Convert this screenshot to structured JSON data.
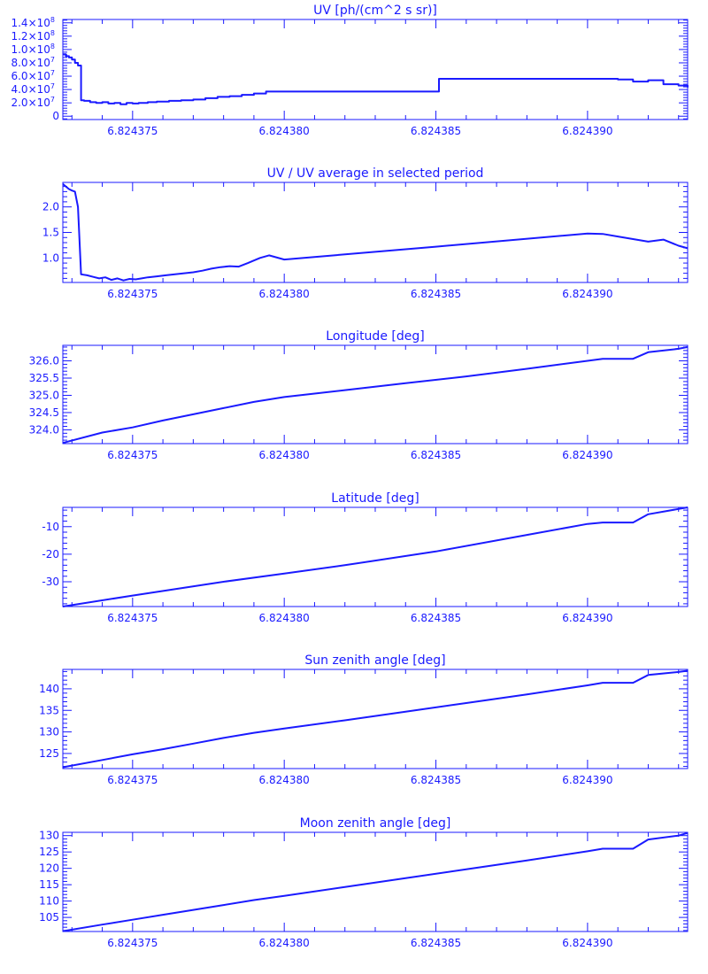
{
  "color": "#1a1aff",
  "x_ticks": [
    "6.824375",
    "6.824380",
    "6.824385",
    "6.824390"
  ],
  "x_tick_values": [
    6.824375,
    6.82438,
    6.824385,
    6.82439
  ],
  "xlim": [
    6.8243727,
    6.8243933
  ],
  "chart_data": [
    {
      "type": "line",
      "title": "UV [ph/(cm^2 s sr)]",
      "ylim": [
        -5000000,
        145000000
      ],
      "y_ticks": [
        0,
        20000000,
        40000000,
        60000000,
        80000000,
        100000000,
        120000000,
        140000000
      ],
      "y_tick_labels": [
        {
          "text": "0"
        },
        {
          "m": "2.0×10",
          "e": "7"
        },
        {
          "m": "4.0×10",
          "e": "7"
        },
        {
          "m": "6.0×10",
          "e": "7"
        },
        {
          "m": "8.0×10",
          "e": "7"
        },
        {
          "m": "1.0×10",
          "e": "8"
        },
        {
          "m": "1.2×10",
          "e": "8"
        },
        {
          "m": "1.4×10",
          "e": "8"
        }
      ],
      "x": [
        6.8243727,
        6.8243728,
        6.8243729,
        6.824373,
        6.8243731,
        6.8243732,
        6.8243733,
        6.8243734,
        6.8243736,
        6.8243738,
        6.824374,
        6.8243742,
        6.8243744,
        6.8243746,
        6.8243748,
        6.824375,
        6.8243752,
        6.8243755,
        6.8243758,
        6.8243762,
        6.8243766,
        6.824377,
        6.8243774,
        6.8243778,
        6.8243782,
        6.8243786,
        6.824379,
        6.8243794,
        6.82438,
        6.824385,
        6.8243851,
        6.824389,
        6.82439,
        6.824391,
        6.8243915,
        6.824392,
        6.8243925,
        6.824393,
        6.8243933
      ],
      "y": [
        93000000,
        90000000,
        88000000,
        85000000,
        80000000,
        76000000,
        24000000,
        23000000,
        21000000,
        20000000,
        21000000,
        19000000,
        20000000,
        18000000,
        20000000,
        19000000,
        20000000,
        21000000,
        22000000,
        23000000,
        24000000,
        25000000,
        27000000,
        29000000,
        30000000,
        32000000,
        34000000,
        37000000,
        37000000,
        37000000,
        56000000,
        56000000,
        56000000,
        55000000,
        52000000,
        54000000,
        48000000,
        46000000,
        43000000
      ]
    },
    {
      "type": "line",
      "title": "UV / UV average in selected period",
      "ylim": [
        0.52,
        2.48
      ],
      "y_ticks": [
        1.0,
        1.5,
        2.0
      ],
      "y_tick_labels": [
        {
          "text": "1.0"
        },
        {
          "text": "1.5"
        },
        {
          "text": "2.0"
        }
      ],
      "x": [
        6.8243727,
        6.8243728,
        6.8243729,
        6.824373,
        6.8243731,
        6.8243732,
        6.8243733,
        6.8243735,
        6.8243737,
        6.8243739,
        6.8243741,
        6.8243743,
        6.8243745,
        6.8243747,
        6.8243749,
        6.8243751,
        6.8243753,
        6.8243755,
        6.8243758,
        6.8243761,
        6.8243764,
        6.8243767,
        6.824377,
        6.8243773,
        6.8243776,
        6.8243779,
        6.8243782,
        6.8243785,
        6.8243788,
        6.824379,
        6.8243792,
        6.8243795,
        6.82438,
        6.824385,
        6.82439,
        6.8243905,
        6.824391,
        6.8243915,
        6.824392,
        6.8243925,
        6.824393,
        6.8243933
      ],
      "y": [
        2.45,
        2.4,
        2.35,
        2.32,
        2.3,
        2.0,
        0.68,
        0.66,
        0.63,
        0.6,
        0.62,
        0.57,
        0.6,
        0.56,
        0.59,
        0.58,
        0.6,
        0.62,
        0.64,
        0.66,
        0.68,
        0.7,
        0.72,
        0.75,
        0.79,
        0.82,
        0.84,
        0.83,
        0.9,
        0.95,
        1.0,
        1.05,
        0.97,
        1.22,
        1.48,
        1.47,
        1.42,
        1.37,
        1.32,
        1.36,
        1.24,
        1.19
      ]
    },
    {
      "type": "line",
      "title": "Longitude [deg]",
      "ylim": [
        323.6,
        326.45
      ],
      "y_ticks": [
        324.0,
        324.5,
        325.0,
        325.5,
        326.0
      ],
      "y_tick_labels": [
        {
          "text": "324.0"
        },
        {
          "text": "324.5"
        },
        {
          "text": "325.0"
        },
        {
          "text": "325.5"
        },
        {
          "text": "326.0"
        }
      ],
      "x": [
        6.8243727,
        6.824374,
        6.824375,
        6.824376,
        6.824377,
        6.824378,
        6.824379,
        6.82438,
        6.824381,
        6.824382,
        6.824384,
        6.824386,
        6.824388,
        6.82439,
        6.8243905,
        6.8243915,
        6.824392,
        6.824393,
        6.8243933
      ],
      "y": [
        323.62,
        323.92,
        324.07,
        324.27,
        324.45,
        324.63,
        324.81,
        324.95,
        325.05,
        325.15,
        325.35,
        325.55,
        325.77,
        326.0,
        326.06,
        326.06,
        326.25,
        326.35,
        326.4
      ]
    },
    {
      "type": "line",
      "title": "Latitude [deg]",
      "ylim": [
        -39,
        -3
      ],
      "y_ticks": [
        -30,
        -20,
        -10
      ],
      "y_tick_labels": [
        {
          "text": "-30"
        },
        {
          "text": "-20"
        },
        {
          "text": "-10"
        }
      ],
      "x": [
        6.8243727,
        6.824375,
        6.824378,
        6.82438,
        6.824382,
        6.824385,
        6.824388,
        6.82439,
        6.8243905,
        6.8243915,
        6.824392,
        6.8243933
      ],
      "y": [
        -39.0,
        -35.0,
        -30.0,
        -27.0,
        -24.0,
        -19.0,
        -13.0,
        -9.0,
        -8.5,
        -8.5,
        -5.5,
        -3.0
      ]
    },
    {
      "type": "line",
      "title": "Sun zenith angle [deg]",
      "ylim": [
        121.5,
        144.5
      ],
      "y_ticks": [
        125,
        130,
        135,
        140
      ],
      "y_tick_labels": [
        {
          "text": "125"
        },
        {
          "text": "130"
        },
        {
          "text": "135"
        },
        {
          "text": "140"
        }
      ],
      "x": [
        6.8243727,
        6.824374,
        6.824375,
        6.824376,
        6.824377,
        6.824378,
        6.824379,
        6.82438,
        6.824382,
        6.824384,
        6.824386,
        6.824388,
        6.82439,
        6.8243905,
        6.8243915,
        6.824392,
        6.824393,
        6.8243933
      ],
      "y": [
        121.8,
        123.5,
        124.8,
        126.0,
        127.3,
        128.6,
        129.8,
        130.8,
        132.7,
        134.7,
        136.7,
        138.7,
        140.8,
        141.4,
        141.4,
        143.2,
        143.9,
        144.2
      ]
    },
    {
      "type": "line",
      "title": "Moon zenith angle [deg]",
      "ylim": [
        100.7,
        131
      ],
      "y_ticks": [
        105,
        110,
        115,
        120,
        125,
        130
      ],
      "y_tick_labels": [
        {
          "text": "105"
        },
        {
          "text": "110"
        },
        {
          "text": "115"
        },
        {
          "text": "120"
        },
        {
          "text": "125"
        },
        {
          "text": "130"
        }
      ],
      "x": [
        6.8243727,
        6.824374,
        6.824375,
        6.824376,
        6.824377,
        6.824378,
        6.824379,
        6.82438,
        6.824382,
        6.824384,
        6.824386,
        6.824388,
        6.82439,
        6.8243905,
        6.8243915,
        6.824392,
        6.824393,
        6.8243933
      ],
      "y": [
        100.8,
        102.8,
        104.3,
        105.8,
        107.3,
        108.8,
        110.3,
        111.6,
        114.3,
        117.0,
        119.7,
        122.4,
        125.2,
        126.0,
        126.0,
        128.8,
        130.0,
        130.8
      ]
    }
  ]
}
